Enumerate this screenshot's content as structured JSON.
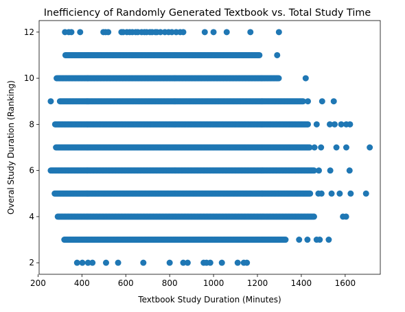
{
  "chart_data": {
    "type": "scatter",
    "title": "Inefficiency of Randomly Generated Textbook vs. Total Study Time",
    "xlabel": "Textbook Study Duration (Minutes)",
    "ylabel": "Overal Study Duration (Ranking)",
    "xlim": [
      205,
      1760
    ],
    "ylim": [
      1.5,
      12.5
    ],
    "xticks": [
      200,
      400,
      600,
      800,
      1000,
      1200,
      1400,
      1600
    ],
    "yticks": [
      2,
      4,
      6,
      8,
      10,
      12
    ],
    "grid": false,
    "marker_color": "#1f77b4",
    "rows": [
      {
        "y": 2,
        "x": [
          378,
          402,
          428,
          448,
          510,
          565,
          680,
          800,
          862,
          882,
          955,
          968,
          985,
          1038,
          1110,
          1138,
          1152
        ]
      },
      {
        "y": 3,
        "ranges": [
          [
            320,
            1330
          ]
        ],
        "x": [
          1390,
          1428,
          1470,
          1484,
          1525
        ]
      },
      {
        "y": 4,
        "ranges": [
          [
            290,
            1460
          ]
        ],
        "x": [
          1590,
          1604
        ]
      },
      {
        "y": 5,
        "ranges": [
          [
            276,
            1440
          ]
        ],
        "x": [
          1478,
          1492,
          1538,
          1575,
          1625,
          1695
        ]
      },
      {
        "y": 6,
        "ranges": [
          [
            258,
            1460
          ]
        ],
        "x": [
          1480,
          1532,
          1620
        ]
      },
      {
        "y": 7,
        "ranges": [
          [
            282,
            1440
          ]
        ],
        "x": [
          1460,
          1490,
          1560,
          1605,
          1712
        ]
      },
      {
        "y": 8,
        "ranges": [
          [
            278,
            1430
          ]
        ],
        "x": [
          1470,
          1530,
          1552,
          1582,
          1605,
          1622
        ]
      },
      {
        "y": 9,
        "ranges": [
          [
            300,
            1410
          ]
        ],
        "x": [
          258,
          1430,
          1495,
          1548
        ]
      },
      {
        "y": 10,
        "ranges": [
          [
            285,
            1300
          ]
        ],
        "x": [
          1420
        ]
      },
      {
        "y": 11,
        "ranges": [
          [
            325,
            1210
          ]
        ],
        "x": [
          1290
        ]
      },
      {
        "y": 12,
        "x": [
          323,
          340,
          352,
          392,
          498,
          508,
          520,
          580,
          588,
          605,
          618,
          630,
          645,
          655,
          672,
          685,
          695,
          710,
          720,
          735,
          742,
          758,
          778,
          795,
          810,
          830,
          848,
          862,
          960,
          1000,
          1060,
          1168,
          1298
        ]
      }
    ]
  }
}
